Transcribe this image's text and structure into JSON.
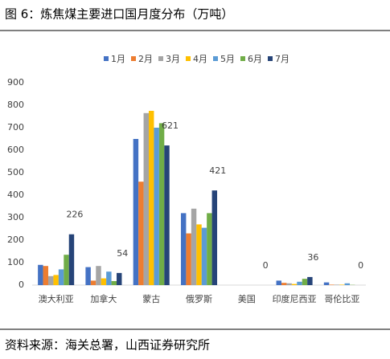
{
  "chart_data": {
    "type": "bar",
    "title": "图 6：炼焦煤主要进口国月度分布（万吨）",
    "source": "资料来源：海关总署，山西证券研究所",
    "categories": [
      "澳大利亚",
      "加拿大",
      "蒙古",
      "俄罗斯",
      "美国",
      "印度尼西亚",
      "哥伦比亚"
    ],
    "series": [
      {
        "name": "1月",
        "color": "#4472c4",
        "values": [
          90,
          80,
          650,
          320,
          0,
          20,
          12
        ]
      },
      {
        "name": "2月",
        "color": "#ed7d31",
        "values": [
          85,
          20,
          460,
          230,
          0,
          10,
          2
        ]
      },
      {
        "name": "3月",
        "color": "#a5a5a5",
        "values": [
          40,
          85,
          765,
          340,
          0,
          8,
          2
        ]
      },
      {
        "name": "4月",
        "color": "#ffc000",
        "values": [
          45,
          30,
          775,
          270,
          0,
          5,
          2
        ]
      },
      {
        "name": "5月",
        "color": "#5b9bd5",
        "values": [
          70,
          60,
          700,
          255,
          0,
          15,
          8
        ]
      },
      {
        "name": "6月",
        "color": "#70ad47",
        "values": [
          135,
          18,
          720,
          320,
          0,
          28,
          1
        ]
      },
      {
        "name": "7月",
        "color": "#264478",
        "values": [
          226,
          54,
          621,
          421,
          0,
          36,
          0
        ],
        "show_labels": true
      }
    ],
    "ylim": [
      0,
      900
    ],
    "yticks": [
      0,
      100,
      200,
      300,
      400,
      500,
      600,
      700,
      800,
      900
    ],
    "grid": false,
    "legend": "top"
  }
}
